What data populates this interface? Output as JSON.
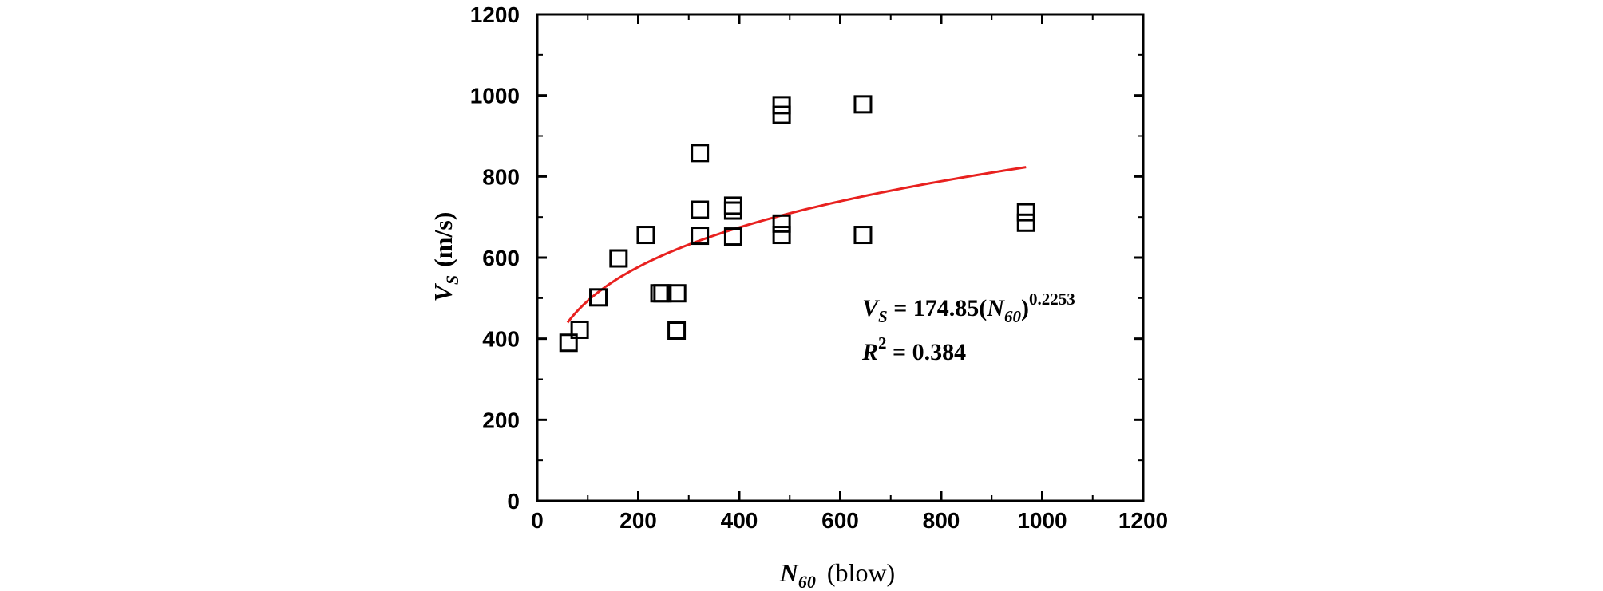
{
  "chart_data": {
    "type": "scatter",
    "xlabel": {
      "main": "N",
      "sub": "60",
      "unit": "(blow)"
    },
    "ylabel": {
      "main": "V",
      "sub": "S",
      "unit": "(m/s)"
    },
    "xlim": [
      0,
      1200
    ],
    "ylim": [
      0,
      1200
    ],
    "xticks": [
      0,
      200,
      400,
      600,
      800,
      1000,
      1200
    ],
    "yticks": [
      0,
      200,
      400,
      600,
      800,
      1000,
      1200
    ],
    "xtick_labels": [
      "0",
      "200",
      "400",
      "600",
      "800",
      "1000",
      "1200"
    ],
    "ytick_labels": [
      "0",
      "200",
      "400",
      "600",
      "800",
      "1000",
      "1200"
    ],
    "grid": false,
    "marker": "open-square",
    "points": [
      [
        62,
        390
      ],
      [
        84,
        422
      ],
      [
        121,
        502
      ],
      [
        161,
        598
      ],
      [
        215,
        656
      ],
      [
        242,
        512
      ],
      [
        248,
        512
      ],
      [
        277,
        512
      ],
      [
        276,
        420
      ],
      [
        322,
        858
      ],
      [
        322,
        718
      ],
      [
        322,
        654
      ],
      [
        388,
        728
      ],
      [
        388,
        716
      ],
      [
        388,
        652
      ],
      [
        484,
        976
      ],
      [
        484,
        952
      ],
      [
        484,
        684
      ],
      [
        484,
        656
      ],
      [
        645,
        978
      ],
      [
        645,
        656
      ],
      [
        968,
        712
      ],
      [
        968,
        686
      ]
    ],
    "fit": {
      "coef": 174.85,
      "exponent": 0.2253,
      "x_range": [
        60,
        968
      ],
      "color": "#e8211f"
    },
    "annotation": {
      "eq_lhs": "V",
      "eq_lhs_sub": "S",
      "eq_mid": " = 174.85(",
      "eq_var": "N",
      "eq_var_sub": "60",
      "eq_close": ")",
      "eq_exp": "0.2253",
      "r2_var": "R",
      "r2_exp": "2",
      "r2_rest": " = 0.384"
    }
  }
}
